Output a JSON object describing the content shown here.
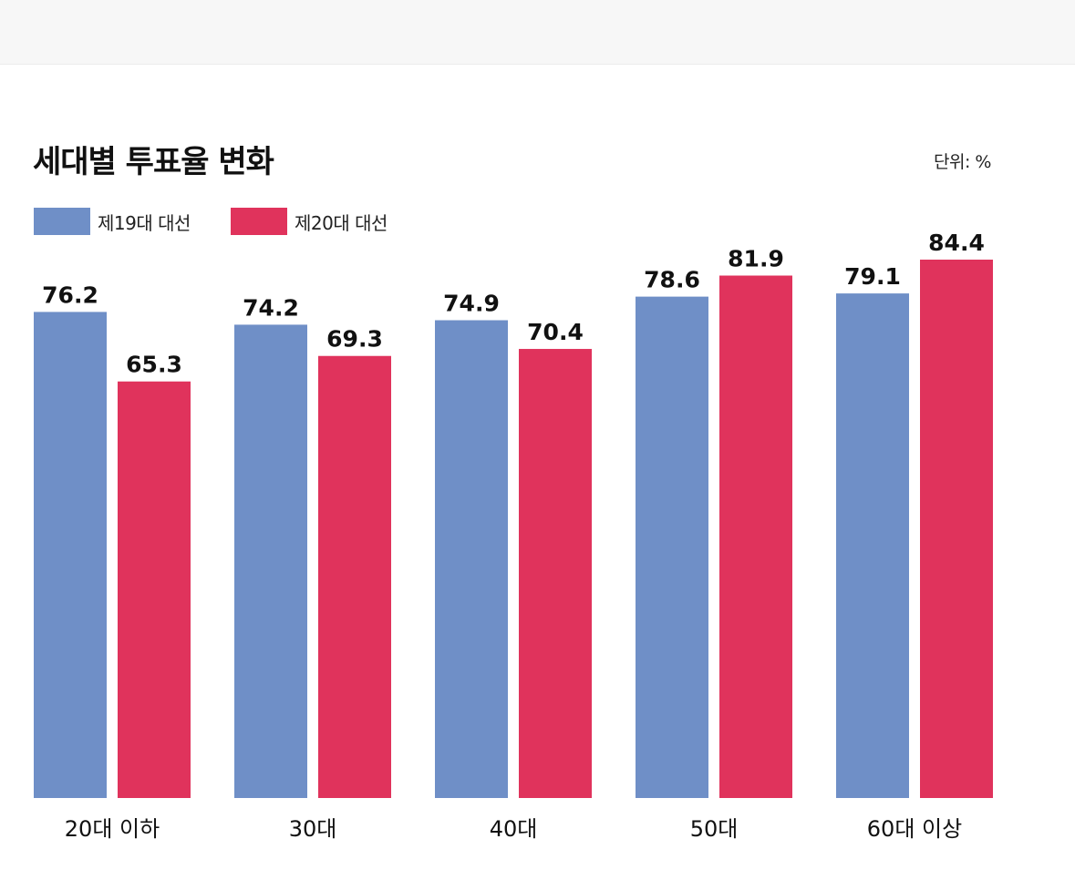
{
  "chart_data": {
    "type": "bar",
    "title": "세대별 투표율 변화",
    "unit_label": "단위: %",
    "categories": [
      "20대 이하",
      "30대",
      "40대",
      "50대",
      "60대 이상"
    ],
    "series": [
      {
        "name": "제19대 대선",
        "color": "#6f8fc7",
        "values": [
          76.2,
          74.2,
          74.9,
          78.6,
          79.1
        ]
      },
      {
        "name": "제20대 대선",
        "color": "#e0335c",
        "values": [
          65.3,
          69.3,
          70.4,
          81.9,
          84.4
        ]
      }
    ],
    "ylim": [
      0,
      84.4
    ],
    "grid": false,
    "legend_position": "top-left"
  }
}
